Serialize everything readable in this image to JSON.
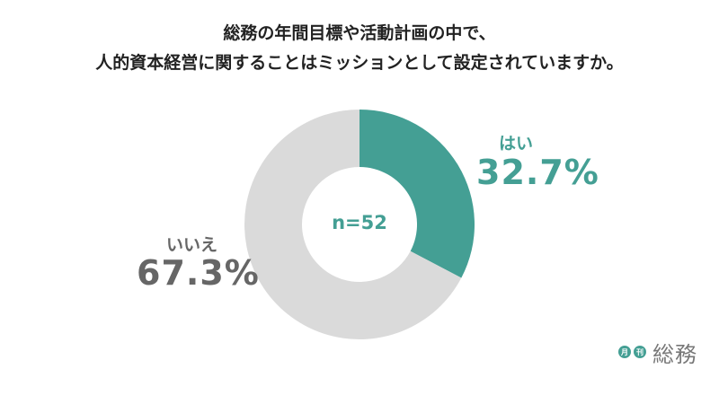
{
  "chart_data": {
    "type": "pie",
    "title_lines": [
      "総務の年間目標や活動計画の中で、",
      "人的資本経営に関することはミッションとして設定されていますか。"
    ],
    "center_label": "n=52",
    "slices": [
      {
        "label": "はい",
        "value": 32.7,
        "value_label": "32.7%",
        "color": "#449f94"
      },
      {
        "label": "いいえ",
        "value": 67.3,
        "value_label": "67.3%",
        "color": "#dadada"
      }
    ],
    "donut": true,
    "start_angle": "12 o'clock, clockwise"
  },
  "logo": {
    "badge_1": "月",
    "badge_2": "刊",
    "text": "総務"
  }
}
